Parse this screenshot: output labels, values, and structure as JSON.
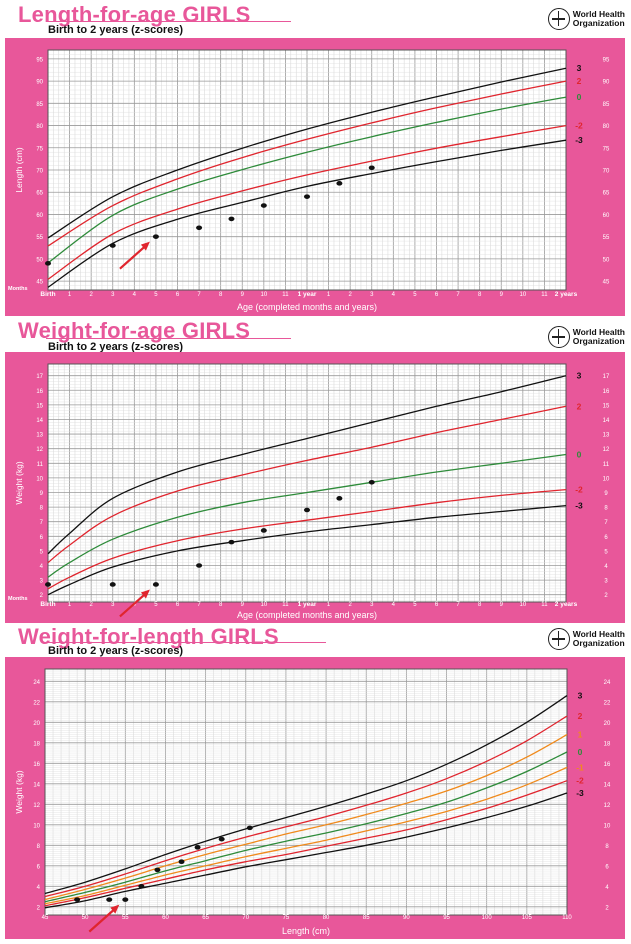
{
  "who": {
    "line1": "World Health",
    "line2": "Organization"
  },
  "chart_data": [
    {
      "type": "line",
      "title": "Length-for-age GIRLS",
      "subtitle": "Birth to 2 years (z-scores)",
      "xlabel": "Age (completed months and years)",
      "ylabel": "Length (cm)",
      "xlim": [
        0,
        24
      ],
      "ylim": [
        43,
        97
      ],
      "yticks": [
        45,
        50,
        55,
        60,
        65,
        70,
        75,
        80,
        85,
        90,
        95
      ],
      "xtick_labels": [
        {
          "x": 0,
          "label": "Birth"
        },
        {
          "x": 1,
          "label": "1"
        },
        {
          "x": 2,
          "label": "2"
        },
        {
          "x": 3,
          "label": "3"
        },
        {
          "x": 4,
          "label": "4"
        },
        {
          "x": 5,
          "label": "5"
        },
        {
          "x": 6,
          "label": "6"
        },
        {
          "x": 7,
          "label": "7"
        },
        {
          "x": 8,
          "label": "8"
        },
        {
          "x": 9,
          "label": "9"
        },
        {
          "x": 10,
          "label": "10"
        },
        {
          "x": 11,
          "label": "11"
        },
        {
          "x": 12,
          "label": "1 year"
        },
        {
          "x": 13,
          "label": "1"
        },
        {
          "x": 14,
          "label": "2"
        },
        {
          "x": 15,
          "label": "3"
        },
        {
          "x": 16,
          "label": "4"
        },
        {
          "x": 17,
          "label": "5"
        },
        {
          "x": 18,
          "label": "6"
        },
        {
          "x": 19,
          "label": "7"
        },
        {
          "x": 20,
          "label": "8"
        },
        {
          "x": 21,
          "label": "9"
        },
        {
          "x": 22,
          "label": "10"
        },
        {
          "x": 23,
          "label": "11"
        },
        {
          "x": 24,
          "label": "2 years"
        }
      ],
      "corner_label": "Months",
      "grid": true,
      "x": [
        0,
        3,
        6,
        9,
        12,
        15,
        18,
        21,
        24
      ],
      "series": [
        {
          "name": "3",
          "color": "#111111",
          "values": [
            54.7,
            64.0,
            70.0,
            74.9,
            79.2,
            83.0,
            86.5,
            89.8,
            92.9
          ]
        },
        {
          "name": "2",
          "color": "#e0252e",
          "values": [
            52.9,
            62.0,
            68.0,
            72.8,
            76.9,
            80.6,
            84.0,
            87.1,
            90.0
          ]
        },
        {
          "name": "0",
          "color": "#2e8b3a",
          "values": [
            49.1,
            59.8,
            65.7,
            70.1,
            74.0,
            77.5,
            80.7,
            83.7,
            86.4
          ]
        },
        {
          "name": "-2",
          "color": "#e0252e",
          "values": [
            45.4,
            55.6,
            61.2,
            65.3,
            68.9,
            72.0,
            74.9,
            77.5,
            80.0
          ]
        },
        {
          "name": "-3",
          "color": "#111111",
          "values": [
            43.6,
            53.5,
            58.9,
            62.7,
            66.3,
            69.2,
            71.9,
            74.4,
            76.7
          ]
        }
      ],
      "points": [
        {
          "x": 0,
          "y": 49
        },
        {
          "x": 3,
          "y": 53
        },
        {
          "x": 5,
          "y": 55
        },
        {
          "x": 7,
          "y": 57
        },
        {
          "x": 8.5,
          "y": 59
        },
        {
          "x": 10,
          "y": 62
        },
        {
          "x": 12,
          "y": 64
        },
        {
          "x": 13.5,
          "y": 67
        },
        {
          "x": 15,
          "y": 70.5
        }
      ],
      "arrow_at": {
        "x": 5,
        "y": 55
      }
    },
    {
      "type": "line",
      "title": "Weight-for-age GIRLS",
      "subtitle": "Birth to 2 years (z-scores)",
      "xlabel": "Age (completed months and years)",
      "ylabel": "Weight (kg)",
      "xlim": [
        0,
        24
      ],
      "ylim": [
        1.5,
        17.8
      ],
      "yticks": [
        2,
        3,
        4,
        5,
        6,
        7,
        8,
        9,
        10,
        11,
        12,
        13,
        14,
        15,
        16,
        17
      ],
      "xtick_labels": [
        {
          "x": 0,
          "label": "Birth"
        },
        {
          "x": 1,
          "label": "1"
        },
        {
          "x": 2,
          "label": "2"
        },
        {
          "x": 3,
          "label": "3"
        },
        {
          "x": 4,
          "label": "4"
        },
        {
          "x": 5,
          "label": "5"
        },
        {
          "x": 6,
          "label": "6"
        },
        {
          "x": 7,
          "label": "7"
        },
        {
          "x": 8,
          "label": "8"
        },
        {
          "x": 9,
          "label": "9"
        },
        {
          "x": 10,
          "label": "10"
        },
        {
          "x": 11,
          "label": "11"
        },
        {
          "x": 12,
          "label": "1 year"
        },
        {
          "x": 13,
          "label": "1"
        },
        {
          "x": 14,
          "label": "2"
        },
        {
          "x": 15,
          "label": "3"
        },
        {
          "x": 16,
          "label": "4"
        },
        {
          "x": 17,
          "label": "5"
        },
        {
          "x": 18,
          "label": "6"
        },
        {
          "x": 19,
          "label": "7"
        },
        {
          "x": 20,
          "label": "8"
        },
        {
          "x": 21,
          "label": "9"
        },
        {
          "x": 22,
          "label": "10"
        },
        {
          "x": 23,
          "label": "11"
        },
        {
          "x": 24,
          "label": "2 years"
        }
      ],
      "corner_label": "Months",
      "grid": true,
      "x": [
        0,
        1,
        3,
        6,
        9,
        12,
        15,
        18,
        21,
        24
      ],
      "series": [
        {
          "name": "3",
          "color": "#111111",
          "values": [
            4.8,
            6.2,
            8.6,
            10.4,
            11.6,
            12.7,
            13.8,
            14.9,
            15.9,
            17.0
          ]
        },
        {
          "name": "2",
          "color": "#e0252e",
          "values": [
            4.2,
            5.4,
            7.4,
            9.1,
            10.2,
            11.2,
            12.1,
            13.1,
            14.0,
            14.9
          ]
        },
        {
          "name": "0",
          "color": "#2e8b3a",
          "values": [
            3.2,
            4.2,
            5.8,
            7.3,
            8.3,
            9.0,
            9.7,
            10.4,
            11.0,
            11.6
          ]
        },
        {
          "name": "-2",
          "color": "#e0252e",
          "values": [
            2.4,
            3.2,
            4.5,
            5.7,
            6.5,
            7.1,
            7.7,
            8.3,
            8.8,
            9.2
          ]
        },
        {
          "name": "-3",
          "color": "#111111",
          "values": [
            2.0,
            2.7,
            3.9,
            5.0,
            5.7,
            6.3,
            6.8,
            7.3,
            7.7,
            8.1
          ]
        }
      ],
      "points": [
        {
          "x": 0,
          "y": 2.7
        },
        {
          "x": 3,
          "y": 2.7
        },
        {
          "x": 5,
          "y": 2.7
        },
        {
          "x": 7,
          "y": 4.0
        },
        {
          "x": 8.5,
          "y": 5.6
        },
        {
          "x": 10,
          "y": 6.4
        },
        {
          "x": 12,
          "y": 7.8
        },
        {
          "x": 13.5,
          "y": 8.6
        },
        {
          "x": 15,
          "y": 9.7
        }
      ],
      "arrow_at": {
        "x": 5,
        "y": 2.7
      }
    },
    {
      "type": "line",
      "title": "Weight-for-length GIRLS",
      "subtitle": "Birth to 2 years (z-scores)",
      "xlabel": "Length (cm)",
      "ylabel": "Weight (kg)",
      "xlim": [
        45,
        110
      ],
      "ylim": [
        1.2,
        25.2
      ],
      "yticks": [
        2,
        4,
        6,
        8,
        10,
        12,
        14,
        16,
        18,
        20,
        22,
        24
      ],
      "xtick_labels": [
        {
          "x": 45,
          "label": "45"
        },
        {
          "x": 50,
          "label": "50"
        },
        {
          "x": 55,
          "label": "55"
        },
        {
          "x": 60,
          "label": "60"
        },
        {
          "x": 65,
          "label": "65"
        },
        {
          "x": 70,
          "label": "70"
        },
        {
          "x": 75,
          "label": "75"
        },
        {
          "x": 80,
          "label": "80"
        },
        {
          "x": 85,
          "label": "85"
        },
        {
          "x": 90,
          "label": "90"
        },
        {
          "x": 95,
          "label": "95"
        },
        {
          "x": 100,
          "label": "100"
        },
        {
          "x": 105,
          "label": "105"
        },
        {
          "x": 110,
          "label": "110"
        }
      ],
      "corner_label": "",
      "grid": true,
      "x": [
        45,
        50,
        55,
        60,
        65,
        70,
        75,
        80,
        85,
        90,
        95,
        100,
        105,
        110
      ],
      "series": [
        {
          "name": "3",
          "color": "#111111",
          "values": [
            3.3,
            4.4,
            5.7,
            7.1,
            8.4,
            9.6,
            10.7,
            11.8,
            13.0,
            14.3,
            15.9,
            17.8,
            20.0,
            22.6
          ]
        },
        {
          "name": "2",
          "color": "#e0252e",
          "values": [
            3.0,
            4.0,
            5.2,
            6.5,
            7.7,
            8.8,
            9.8,
            10.8,
            11.9,
            13.1,
            14.5,
            16.2,
            18.2,
            20.6
          ]
        },
        {
          "name": "1",
          "color": "#f08a1c",
          "values": [
            2.7,
            3.7,
            4.8,
            6.0,
            7.1,
            8.1,
            9.1,
            10.0,
            11.0,
            12.1,
            13.3,
            14.8,
            16.6,
            18.8
          ]
        },
        {
          "name": "0",
          "color": "#2e8b3a",
          "values": [
            2.5,
            3.4,
            4.4,
            5.5,
            6.5,
            7.5,
            8.4,
            9.2,
            10.1,
            11.1,
            12.2,
            13.6,
            15.2,
            17.1
          ]
        },
        {
          "name": "-1",
          "color": "#f08a1c",
          "values": [
            2.3,
            3.1,
            4.1,
            5.1,
            6.0,
            6.9,
            7.7,
            8.5,
            9.4,
            10.3,
            11.3,
            12.5,
            13.9,
            15.6
          ]
        },
        {
          "name": "-2",
          "color": "#e0252e",
          "values": [
            2.1,
            2.9,
            3.8,
            4.7,
            5.6,
            6.4,
            7.1,
            7.9,
            8.7,
            9.5,
            10.5,
            11.6,
            12.9,
            14.3
          ]
        },
        {
          "name": "-3",
          "color": "#111111",
          "values": [
            1.9,
            2.6,
            3.5,
            4.3,
            5.1,
            5.9,
            6.6,
            7.3,
            8.0,
            8.8,
            9.7,
            10.7,
            11.8,
            13.1
          ]
        }
      ],
      "points": [
        {
          "x": 49,
          "y": 2.7
        },
        {
          "x": 53,
          "y": 2.7
        },
        {
          "x": 55,
          "y": 2.7
        },
        {
          "x": 57,
          "y": 4.0
        },
        {
          "x": 59,
          "y": 5.6
        },
        {
          "x": 62,
          "y": 6.4
        },
        {
          "x": 64,
          "y": 7.8
        },
        {
          "x": 67,
          "y": 8.6
        },
        {
          "x": 70.5,
          "y": 9.7
        }
      ],
      "arrow_at": {
        "x": 55,
        "y": 2.7
      }
    }
  ]
}
